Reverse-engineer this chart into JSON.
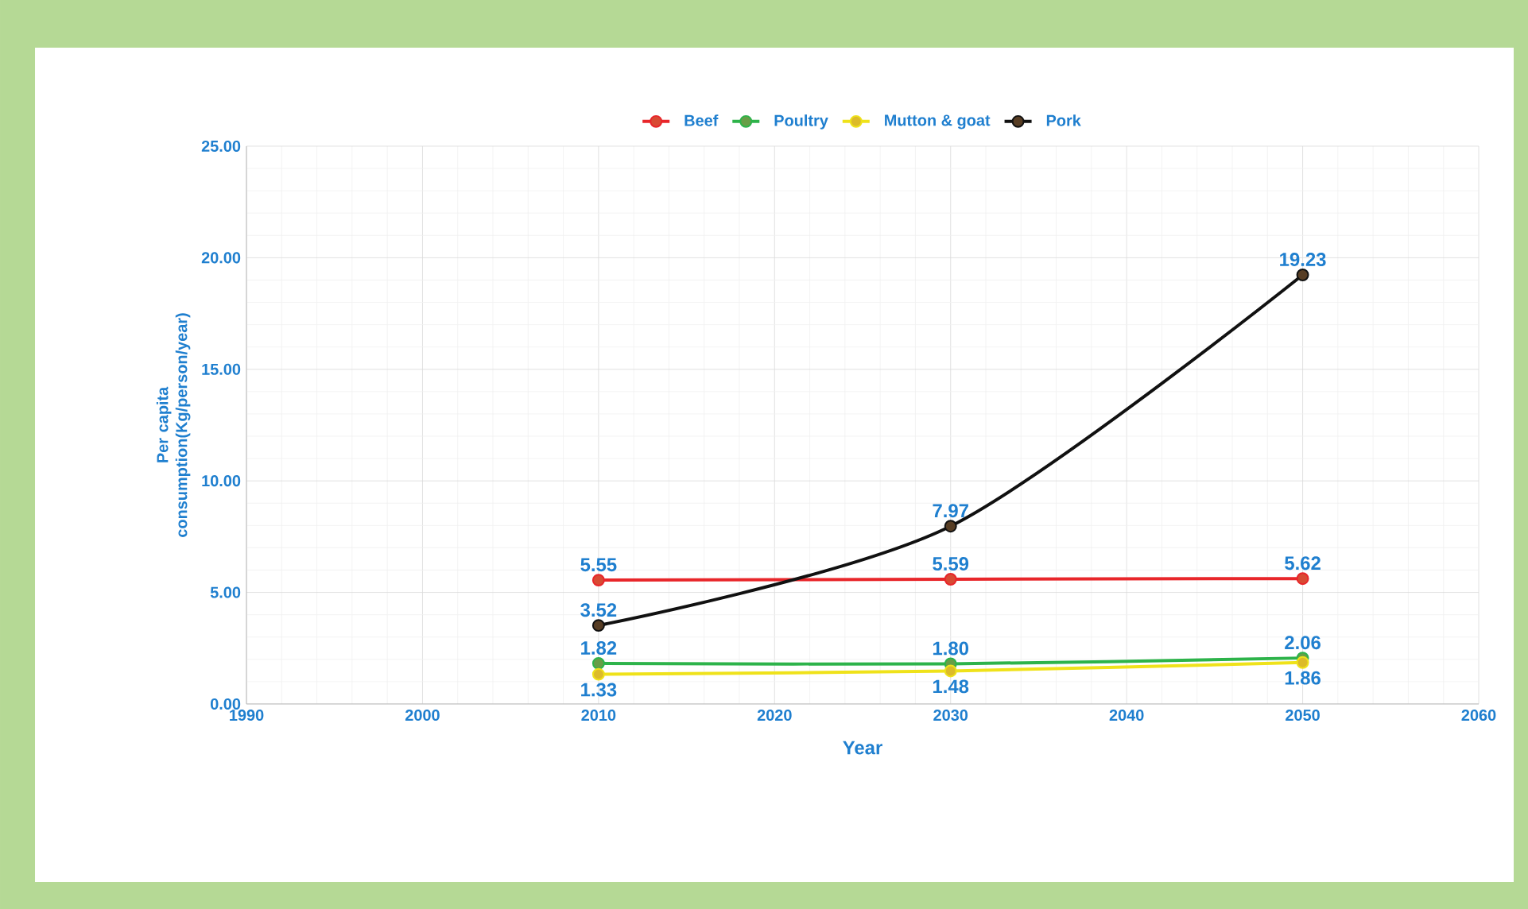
{
  "chart_data": {
    "type": "line",
    "xlabel": "Year",
    "ylabel": "Per capita consumption(Kg/person/year)",
    "x": [
      2010,
      2030,
      2050
    ],
    "series": [
      {
        "name": "Beef",
        "color": "#e8262a",
        "values": [
          5.55,
          5.59,
          5.62
        ],
        "value_labels": [
          "5.55",
          "5.59",
          "5.62"
        ]
      },
      {
        "name": "Poultry",
        "color": "#2db34a",
        "values": [
          1.82,
          1.8,
          2.06
        ],
        "value_labels": [
          "1.82",
          "1.80",
          "2.06"
        ]
      },
      {
        "name": "Mutton & goat",
        "color": "#efe21a",
        "values": [
          1.33,
          1.48,
          1.86
        ],
        "value_labels": [
          "1.33",
          "1.48",
          "1.86"
        ]
      },
      {
        "name": "Pork",
        "color": "#111111",
        "values": [
          3.52,
          7.97,
          19.23
        ],
        "value_labels": [
          "3.52",
          "7.97",
          "19.23"
        ]
      }
    ],
    "xlim": [
      1990,
      2060
    ],
    "xticks": [
      1990,
      2000,
      2010,
      2020,
      2030,
      2040,
      2050,
      2060
    ],
    "ylim": [
      0,
      25
    ],
    "yticks": [
      {
        "value": 0,
        "label": "0.00"
      },
      {
        "value": 5,
        "label": "5.00"
      },
      {
        "value": 10,
        "label": "10.00"
      },
      {
        "value": 15,
        "label": "15.00"
      },
      {
        "value": 20,
        "label": "20.00"
      },
      {
        "value": 25,
        "label": "25.00"
      }
    ],
    "grid": true,
    "legend": "top",
    "marker": "circle",
    "line_style": "solid"
  }
}
